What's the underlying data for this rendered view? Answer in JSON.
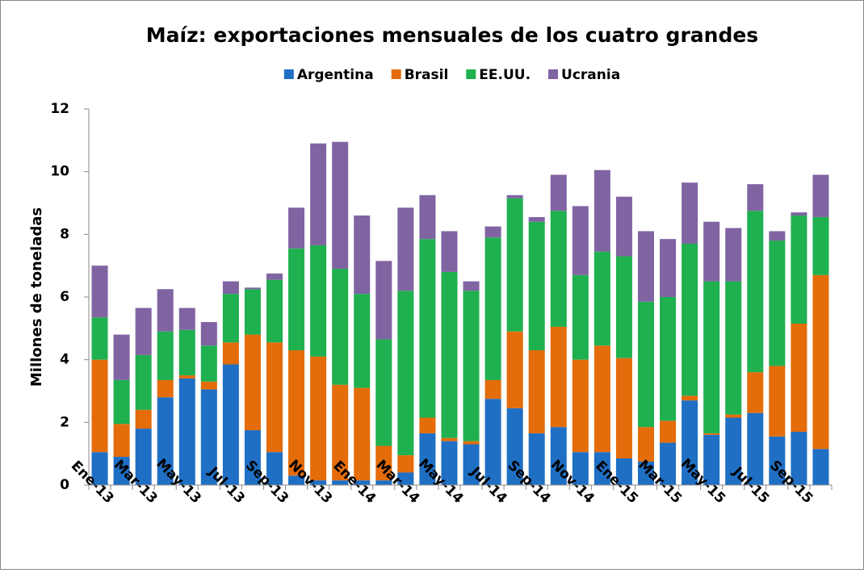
{
  "chart_data": {
    "type": "stacked_bar",
    "title": "Maíz: exportaciones mensuales de los cuatro grandes",
    "y_label": "Millones de toneladas",
    "categories": [
      "Ene-13",
      null,
      "Mar-13",
      null,
      "May-13",
      null,
      "Jul-13",
      null,
      "Sep-13",
      null,
      "Nov-13",
      null,
      "Ene-14",
      null,
      "Mar-14",
      null,
      "May-14",
      null,
      "Jul-14",
      null,
      "Sep-14",
      null,
      "Nov-14",
      null,
      "Ene-15",
      null,
      "Mar-15",
      null,
      "May-15",
      null,
      "Jul-15",
      null,
      "Sep-15",
      null
    ],
    "series": [
      {
        "name": "Argentina",
        "color": "#1f6fc5",
        "values": [
          1.05,
          0.9,
          1.8,
          2.8,
          3.4,
          3.05,
          3.85,
          1.75,
          1.05,
          0.3,
          0.15,
          0.15,
          0.15,
          0.15,
          0.4,
          1.65,
          1.4,
          1.3,
          2.75,
          2.45,
          1.65,
          1.85,
          1.05,
          1.05,
          0.85,
          0.75,
          1.35,
          2.7,
          1.6,
          2.15,
          2.3,
          1.55,
          1.7,
          1.15
        ]
      },
      {
        "name": "Brasil",
        "color": "#e46c0a",
        "values": [
          2.95,
          1.05,
          0.6,
          0.55,
          0.1,
          0.25,
          0.7,
          3.05,
          3.5,
          4.0,
          3.95,
          3.05,
          2.95,
          1.1,
          0.55,
          0.5,
          0.1,
          0.1,
          0.6,
          2.45,
          2.65,
          3.2,
          2.95,
          3.4,
          3.2,
          1.1,
          0.7,
          0.15,
          0.05,
          0.1,
          1.3,
          2.25,
          3.45,
          5.55
        ]
      },
      {
        "name": "EE.UU.",
        "color": "#1fb04f",
        "values": [
          1.35,
          1.4,
          1.75,
          1.55,
          1.45,
          1.15,
          1.55,
          1.45,
          2.0,
          3.25,
          3.55,
          3.7,
          3.0,
          3.4,
          5.25,
          5.7,
          5.3,
          4.8,
          4.55,
          4.25,
          4.1,
          3.7,
          2.7,
          3.0,
          3.25,
          4.0,
          3.95,
          4.85,
          4.85,
          4.25,
          5.15,
          4.0,
          3.45,
          1.85
        ]
      },
      {
        "name": "Ucrania",
        "color": "#8064a2",
        "values": [
          1.65,
          1.45,
          1.5,
          1.35,
          0.7,
          0.75,
          0.4,
          0.05,
          0.2,
          1.3,
          3.25,
          4.05,
          2.5,
          2.5,
          2.65,
          1.4,
          1.3,
          0.3,
          0.35,
          0.1,
          0.15,
          1.15,
          2.2,
          2.6,
          1.9,
          2.25,
          1.85,
          1.95,
          1.9,
          1.7,
          0.85,
          0.3,
          0.1,
          1.35
        ]
      }
    ],
    "ylim": [
      0,
      12
    ],
    "yticks": [
      0,
      2,
      4,
      6,
      8,
      10,
      12
    ],
    "grid": false,
    "legend": "top"
  }
}
